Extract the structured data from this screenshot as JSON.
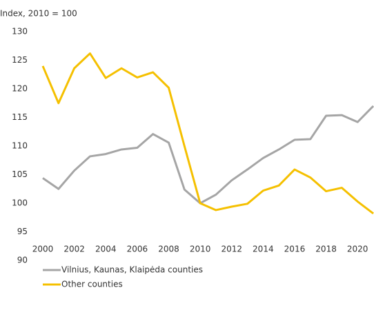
{
  "chart_data": {
    "type": "line",
    "y_axis_label": "Index, 2010 = 100",
    "x": [
      2000,
      2001,
      2002,
      2003,
      2004,
      2005,
      2006,
      2007,
      2008,
      2009,
      2010,
      2011,
      2012,
      2013,
      2014,
      2015,
      2016,
      2017,
      2018,
      2019,
      2020,
      2021
    ],
    "series": [
      {
        "name": "Vilnius, Kaunas, Klaipėda counties",
        "color": "#a5a5a5",
        "values": [
          104.4,
          102.5,
          105.7,
          108.2,
          108.6,
          109.4,
          109.7,
          112.1,
          110.6,
          102.4,
          100,
          101.5,
          104,
          105.9,
          107.9,
          109.4,
          111.1,
          111.2,
          115.3,
          115.4,
          114.2,
          117
        ]
      },
      {
        "name": "Other counties",
        "color": "#f5c000",
        "values": [
          124.0,
          117.5,
          123.6,
          126.2,
          121.9,
          123.6,
          122.0,
          122.9,
          120.2,
          110.0,
          100,
          98.8,
          99.4,
          99.9,
          102.2,
          103.1,
          105.9,
          104.5,
          102.1,
          102.7,
          100.3,
          98.2
        ]
      }
    ],
    "xlim": [
      2000,
      2021
    ],
    "xticks": [
      2000,
      2002,
      2004,
      2006,
      2008,
      2010,
      2012,
      2014,
      2016,
      2018,
      2020
    ],
    "ylim": [
      90,
      130
    ],
    "yticks": [
      90,
      95,
      100,
      105,
      110,
      115,
      120,
      125,
      130
    ],
    "grid": false
  }
}
